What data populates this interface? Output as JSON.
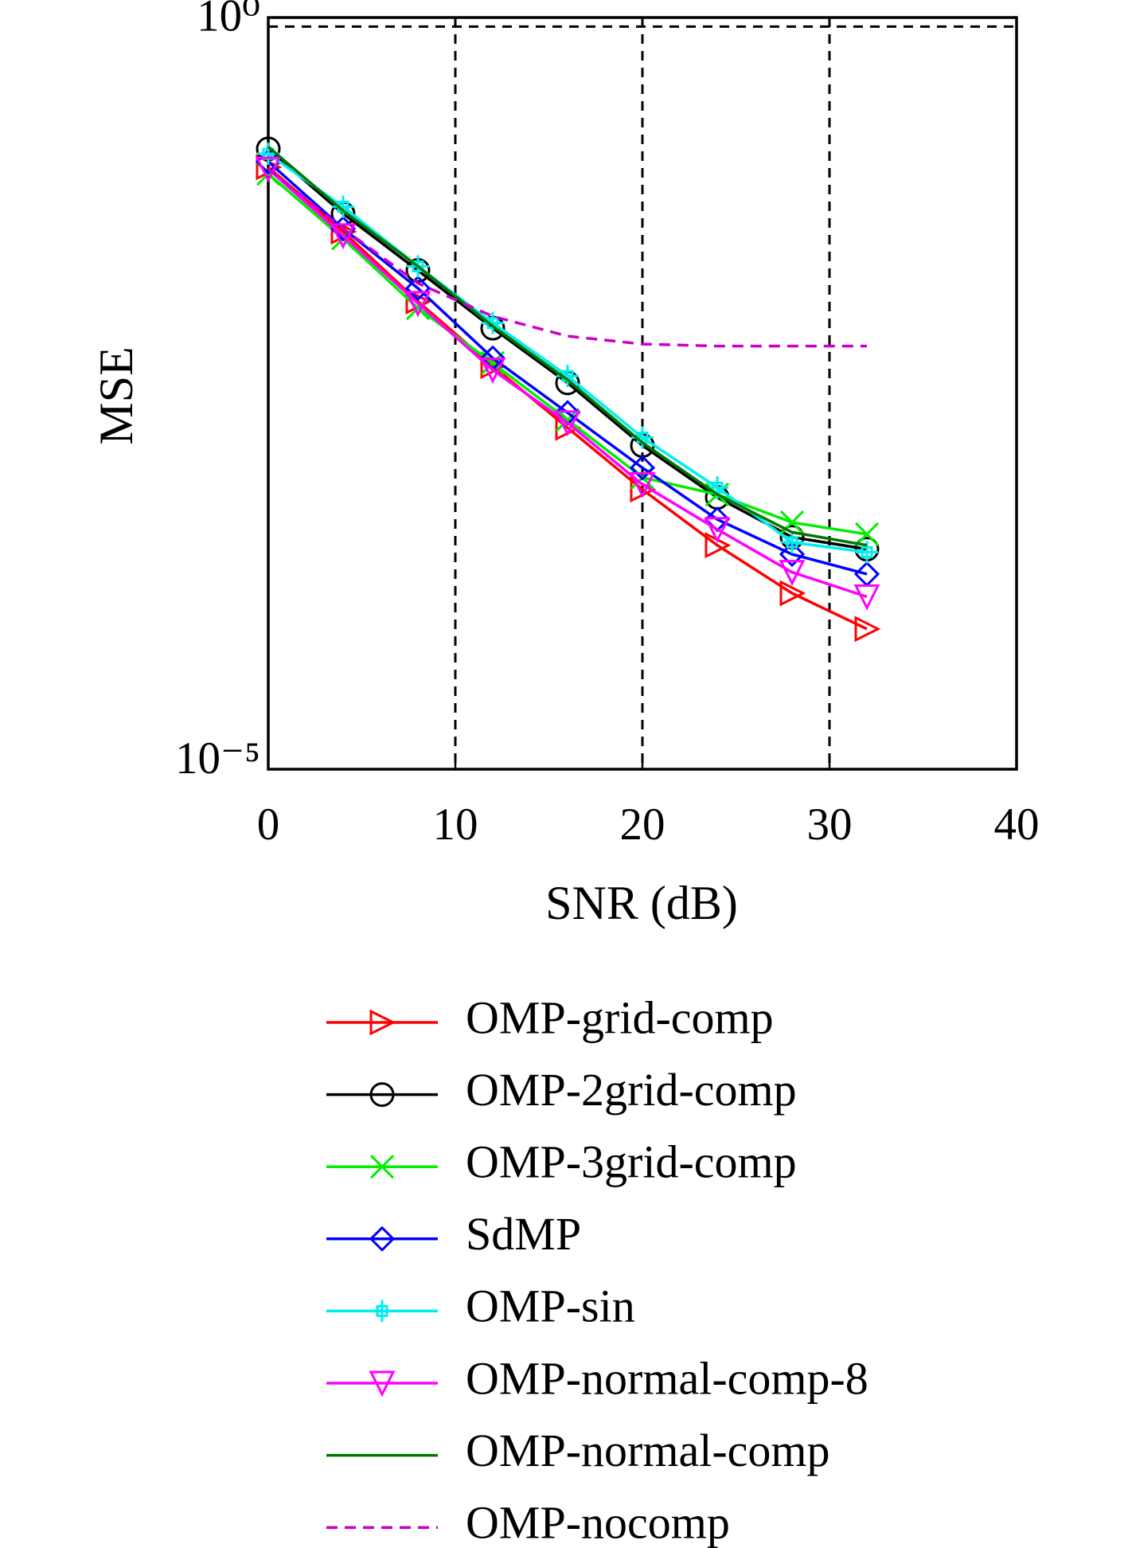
{
  "chart_data": {
    "type": "line",
    "x_label": "SNR (dB)",
    "y_label": "MSE",
    "x": [
      0,
      4,
      8,
      12,
      16,
      20,
      24,
      28,
      32
    ],
    "xlim": [
      0,
      40
    ],
    "xticks": [
      0,
      10,
      20,
      30,
      40
    ],
    "ylim": [
      1e-05,
      1.15
    ],
    "y_scale": "log",
    "yticks": [
      {
        "value": 1,
        "label": "10⁰"
      },
      {
        "value": 1e-05,
        "label": "10⁻⁵"
      }
    ],
    "grid": true,
    "legend": "below",
    "series": [
      {
        "name": "OMP-grid-comp",
        "color": "#ff0000",
        "marker": "triangle-right",
        "dash": false,
        "values": [
          0.113,
          0.0416,
          0.0141,
          0.00518,
          0.00199,
          0.000764,
          0.000322,
          0.000153,
          8.8e-05
        ]
      },
      {
        "name": "OMP-2grid-comp",
        "color": "#000000",
        "marker": "circle",
        "dash": false,
        "values": [
          0.15,
          0.0549,
          0.0228,
          0.00931,
          0.00399,
          0.00151,
          0.000676,
          0.000365,
          0.000303
        ]
      },
      {
        "name": "OMP-3grid-comp",
        "color": "#00ee00",
        "marker": "x",
        "dash": false,
        "values": [
          0.102,
          0.0374,
          0.0127,
          0.00543,
          0.00225,
          0.00092,
          0.000708,
          0.000459,
          0.000382
        ]
      },
      {
        "name": "SdMP",
        "color": "#0000ff",
        "marker": "diamond",
        "dash": false,
        "values": [
          0.123,
          0.0436,
          0.0173,
          0.00586,
          0.00251,
          0.00107,
          0.000481,
          0.00028,
          0.000206
        ]
      },
      {
        "name": "OMP-sin",
        "color": "#00eeee",
        "marker": "plus",
        "dash": false,
        "values": [
          0.139,
          0.0612,
          0.0243,
          0.0101,
          0.00444,
          0.00171,
          0.000788,
          0.000337,
          0.000289
        ]
      },
      {
        "name": "OMP-normal-comp-8",
        "color": "#ff00ff",
        "marker": "triangle-down",
        "dash": false,
        "values": [
          0.11,
          0.0391,
          0.0137,
          0.00487,
          0.00215,
          0.000826,
          0.000412,
          0.000212,
          0.000145
        ]
      },
      {
        "name": "OMP-normal-comp",
        "color": "#007700",
        "marker": "none",
        "dash": false,
        "values": [
          0.155,
          0.0575,
          0.0243,
          0.00961,
          0.00418,
          0.00158,
          0.000708,
          0.000394,
          0.000322
        ]
      },
      {
        "name": "OMP-nocomp",
        "color": "#cc00cc",
        "marker": "none",
        "dash": true,
        "values": [
          0.11,
          0.0436,
          0.0187,
          0.0112,
          0.00824,
          0.00728,
          0.00706,
          0.00706,
          0.00706
        ]
      }
    ]
  }
}
